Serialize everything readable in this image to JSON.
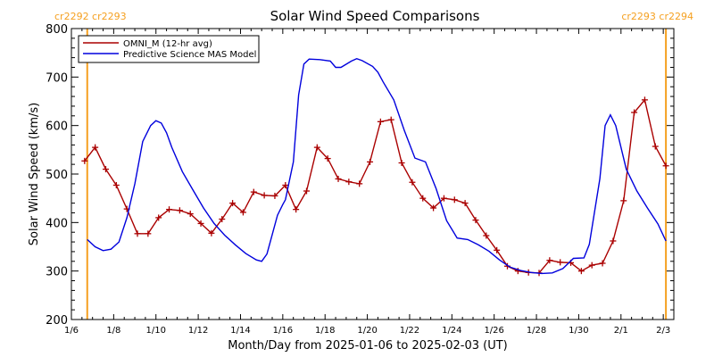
{
  "chart_data": {
    "type": "line",
    "title": "Solar Wind Speed Comparisons",
    "xlabel": "Month/Day from 2025-01-06 to 2025-02-03 (UT)",
    "ylabel": "Solar Wind Speed (km/s)",
    "xlim": [
      "2025-01-06",
      "2025-02-03T12:00"
    ],
    "ylim": [
      200,
      800
    ],
    "x_ticks": [
      "1/6",
      "1/8",
      "1/10",
      "1/12",
      "1/14",
      "1/16",
      "1/18",
      "1/20",
      "1/22",
      "1/24",
      "1/26",
      "1/28",
      "1/30",
      "2/1",
      "2/3"
    ],
    "y_ticks": [
      200,
      300,
      400,
      500,
      600,
      700,
      800
    ],
    "legend_position": "top-left",
    "grid": false,
    "carrington_markers": [
      {
        "date": "2025-01-06T18:00",
        "label": "cr2292 cr2293",
        "color": "#f5a020"
      },
      {
        "date": "2025-02-03T03:00",
        "label": "cr2293 cr2294",
        "color": "#f5a020"
      }
    ],
    "series": [
      {
        "name": "OMNI_M (12-hr avg)",
        "color": "#aa0000",
        "marker": "+",
        "points": [
          [
            "2025-01-06T15:00",
            527
          ],
          [
            "2025-01-07T03:00",
            555
          ],
          [
            "2025-01-07T15:00",
            510
          ],
          [
            "2025-01-08T03:00",
            477
          ],
          [
            "2025-01-08T15:00",
            428
          ],
          [
            "2025-01-09T03:00",
            377
          ],
          [
            "2025-01-09T15:00",
            377
          ],
          [
            "2025-01-10T03:00",
            410
          ],
          [
            "2025-01-10T15:00",
            427
          ],
          [
            "2025-01-11T03:00",
            425
          ],
          [
            "2025-01-11T15:00",
            418
          ],
          [
            "2025-01-12T03:00",
            398
          ],
          [
            "2025-01-12T15:00",
            378
          ],
          [
            "2025-01-13T03:00",
            407
          ],
          [
            "2025-01-13T15:00",
            440
          ],
          [
            "2025-01-14T03:00",
            421
          ],
          [
            "2025-01-14T15:00",
            463
          ],
          [
            "2025-01-15T03:00",
            456
          ],
          [
            "2025-01-15T15:00",
            455
          ],
          [
            "2025-01-16T03:00",
            477
          ],
          [
            "2025-01-16T15:00",
            427
          ],
          [
            "2025-01-17T03:00",
            465
          ],
          [
            "2025-01-17T15:00",
            555
          ],
          [
            "2025-01-18T03:00",
            532
          ],
          [
            "2025-01-18T15:00",
            490
          ],
          [
            "2025-01-19T03:00",
            484
          ],
          [
            "2025-01-19T15:00",
            480
          ],
          [
            "2025-01-20T03:00",
            525
          ],
          [
            "2025-01-20T15:00",
            608
          ],
          [
            "2025-01-21T03:00",
            612
          ],
          [
            "2025-01-21T15:00",
            523
          ],
          [
            "2025-01-22T03:00",
            483
          ],
          [
            "2025-01-22T15:00",
            450
          ],
          [
            "2025-01-23T03:00",
            430
          ],
          [
            "2025-01-23T15:00",
            450
          ],
          [
            "2025-01-24T03:00",
            447
          ],
          [
            "2025-01-24T15:00",
            440
          ],
          [
            "2025-01-25T03:00",
            405
          ],
          [
            "2025-01-25T15:00",
            373
          ],
          [
            "2025-01-26T03:00",
            343
          ],
          [
            "2025-01-26T15:00",
            310
          ],
          [
            "2025-01-27T03:00",
            300
          ],
          [
            "2025-01-27T15:00",
            297
          ],
          [
            "2025-01-28T03:00",
            296
          ],
          [
            "2025-01-28T15:00",
            322
          ],
          [
            "2025-01-29T03:00",
            318
          ],
          [
            "2025-01-29T15:00",
            317
          ],
          [
            "2025-01-30T03:00",
            300
          ],
          [
            "2025-01-30T15:00",
            312
          ],
          [
            "2025-01-31T03:00",
            316
          ],
          [
            "2025-01-31T15:00",
            362
          ],
          [
            "2025-02-01T03:00",
            445
          ],
          [
            "2025-02-01T15:00",
            627
          ],
          [
            "2025-02-02T03:00",
            653
          ],
          [
            "2025-02-02T15:00",
            557
          ],
          [
            "2025-02-03T03:00",
            517
          ]
        ]
      },
      {
        "name": "Predictive Science MAS Model",
        "color": "#0000dd",
        "points": [
          [
            "2025-01-06T18:00",
            365
          ],
          [
            "2025-01-07T03:00",
            350
          ],
          [
            "2025-01-07T12:00",
            342
          ],
          [
            "2025-01-07T21:00",
            345
          ],
          [
            "2025-01-08T06:00",
            360
          ],
          [
            "2025-01-08T15:00",
            410
          ],
          [
            "2025-01-09T00:00",
            480
          ],
          [
            "2025-01-09T09:00",
            567
          ],
          [
            "2025-01-09T18:00",
            600
          ],
          [
            "2025-01-10T00:00",
            610
          ],
          [
            "2025-01-10T06:00",
            605
          ],
          [
            "2025-01-10T12:00",
            585
          ],
          [
            "2025-01-10T18:00",
            555
          ],
          [
            "2025-01-11T06:00",
            505
          ],
          [
            "2025-01-11T18:00",
            467
          ],
          [
            "2025-01-12T06:00",
            430
          ],
          [
            "2025-01-12T18:00",
            398
          ],
          [
            "2025-01-13T06:00",
            374
          ],
          [
            "2025-01-13T18:00",
            354
          ],
          [
            "2025-01-14T06:00",
            336
          ],
          [
            "2025-01-14T18:00",
            323
          ],
          [
            "2025-01-15T00:00",
            320
          ],
          [
            "2025-01-15T06:00",
            335
          ],
          [
            "2025-01-15T12:00",
            375
          ],
          [
            "2025-01-15T18:00",
            415
          ],
          [
            "2025-01-16T00:00",
            437
          ],
          [
            "2025-01-16T03:00",
            447
          ],
          [
            "2025-01-16T12:00",
            525
          ],
          [
            "2025-01-16T18:00",
            663
          ],
          [
            "2025-01-17T00:00",
            727
          ],
          [
            "2025-01-17T06:00",
            737
          ],
          [
            "2025-01-17T18:00",
            736
          ],
          [
            "2025-01-18T06:00",
            733
          ],
          [
            "2025-01-18T12:00",
            720
          ],
          [
            "2025-01-18T18:00",
            720
          ],
          [
            "2025-01-19T06:00",
            733
          ],
          [
            "2025-01-19T12:00",
            738
          ],
          [
            "2025-01-19T18:00",
            734
          ],
          [
            "2025-01-20T06:00",
            722
          ],
          [
            "2025-01-20T12:00",
            710
          ],
          [
            "2025-01-20T18:00",
            690
          ],
          [
            "2025-01-21T06:00",
            653
          ],
          [
            "2025-01-21T18:00",
            590
          ],
          [
            "2025-01-22T06:00",
            533
          ],
          [
            "2025-01-22T18:00",
            525
          ],
          [
            "2025-01-23T06:00",
            470
          ],
          [
            "2025-01-23T18:00",
            404
          ],
          [
            "2025-01-24T06:00",
            368
          ],
          [
            "2025-01-24T18:00",
            365
          ],
          [
            "2025-01-25T06:00",
            354
          ],
          [
            "2025-01-25T18:00",
            341
          ],
          [
            "2025-01-26T06:00",
            323
          ],
          [
            "2025-01-26T18:00",
            308
          ],
          [
            "2025-01-27T06:00",
            301
          ],
          [
            "2025-01-27T18:00",
            297
          ],
          [
            "2025-01-28T06:00",
            295
          ],
          [
            "2025-01-28T18:00",
            296
          ],
          [
            "2025-01-29T06:00",
            305
          ],
          [
            "2025-01-29T18:00",
            326
          ],
          [
            "2025-01-30T06:00",
            327
          ],
          [
            "2025-01-30T12:00",
            355
          ],
          [
            "2025-01-31T00:00",
            490
          ],
          [
            "2025-01-31T06:00",
            600
          ],
          [
            "2025-01-31T12:00",
            622
          ],
          [
            "2025-01-31T18:00",
            600
          ],
          [
            "2025-02-01T06:00",
            510
          ],
          [
            "2025-02-01T18:00",
            465
          ],
          [
            "2025-02-02T06:00",
            430
          ],
          [
            "2025-02-02T18:00",
            397
          ],
          [
            "2025-02-03T03:00",
            362
          ]
        ]
      }
    ]
  }
}
